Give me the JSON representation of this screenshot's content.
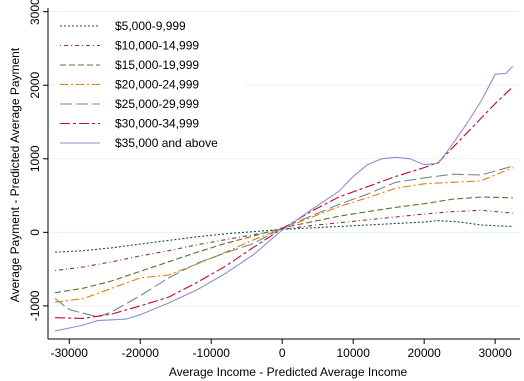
{
  "chart_data": {
    "type": "line",
    "xlabel": "Average Income - Predicted Average Income",
    "ylabel": "Average Payment - Predicted Average Payment",
    "xlim": [
      -33000,
      33500
    ],
    "ylim": [
      -1450,
      3050
    ],
    "xticks": [
      -30000,
      -20000,
      -10000,
      0,
      10000,
      20000,
      30000
    ],
    "yticks": [
      -1000,
      0,
      1000,
      2000,
      3000
    ],
    "grid": true,
    "legend_position": "top-left",
    "series": [
      {
        "name": "$5,000-9,999",
        "color": "#1a476f",
        "dash": "2,2",
        "points": [
          [
            -32000,
            -270
          ],
          [
            -28000,
            -250
          ],
          [
            -24000,
            -210
          ],
          [
            -20000,
            -160
          ],
          [
            -16000,
            -110
          ],
          [
            -12000,
            -60
          ],
          [
            -8000,
            -20
          ],
          [
            -4000,
            10
          ],
          [
            0,
            40
          ],
          [
            4000,
            60
          ],
          [
            8000,
            80
          ],
          [
            12000,
            100
          ],
          [
            16000,
            120
          ],
          [
            20000,
            140
          ],
          [
            22000,
            160
          ],
          [
            25000,
            140
          ],
          [
            28000,
            100
          ],
          [
            32500,
            80
          ]
        ]
      },
      {
        "name": "$10,000-14,999",
        "color": "#90353b",
        "dash": "1,3,4,3",
        "points": [
          [
            -32000,
            -520
          ],
          [
            -28000,
            -470
          ],
          [
            -24000,
            -400
          ],
          [
            -20000,
            -320
          ],
          [
            -16000,
            -250
          ],
          [
            -12000,
            -170
          ],
          [
            -8000,
            -100
          ],
          [
            -4000,
            -30
          ],
          [
            0,
            40
          ],
          [
            4000,
            90
          ],
          [
            8000,
            130
          ],
          [
            12000,
            170
          ],
          [
            16000,
            210
          ],
          [
            20000,
            250
          ],
          [
            24000,
            280
          ],
          [
            28000,
            300
          ],
          [
            32500,
            260
          ]
        ]
      },
      {
        "name": "$15,000-19,999",
        "color": "#55752f",
        "dash": "6,3",
        "points": [
          [
            -32000,
            -820
          ],
          [
            -28000,
            -760
          ],
          [
            -24000,
            -660
          ],
          [
            -20000,
            -530
          ],
          [
            -16000,
            -400
          ],
          [
            -12000,
            -270
          ],
          [
            -8000,
            -150
          ],
          [
            -4000,
            -50
          ],
          [
            0,
            60
          ],
          [
            4000,
            140
          ],
          [
            8000,
            220
          ],
          [
            12000,
            280
          ],
          [
            16000,
            340
          ],
          [
            20000,
            390
          ],
          [
            24000,
            450
          ],
          [
            28000,
            480
          ],
          [
            32500,
            470
          ]
        ]
      },
      {
        "name": "$20,000-24,999",
        "color": "#e37e00",
        "dash": "8,3,2,3",
        "points": [
          [
            -32000,
            -950
          ],
          [
            -28000,
            -900
          ],
          [
            -24000,
            -760
          ],
          [
            -20000,
            -620
          ],
          [
            -16000,
            -580
          ],
          [
            -12000,
            -430
          ],
          [
            -8000,
            -270
          ],
          [
            -4000,
            -100
          ],
          [
            0,
            50
          ],
          [
            4000,
            200
          ],
          [
            8000,
            350
          ],
          [
            12000,
            470
          ],
          [
            16000,
            600
          ],
          [
            20000,
            660
          ],
          [
            24000,
            680
          ],
          [
            28000,
            700
          ],
          [
            32500,
            880
          ]
        ]
      },
      {
        "name": "$25,000-29,999",
        "color": "#6e8e84",
        "dash": "12,4",
        "points": [
          [
            -32000,
            -900
          ],
          [
            -30000,
            -1050
          ],
          [
            -28000,
            -1100
          ],
          [
            -26000,
            -1150
          ],
          [
            -24000,
            -1080
          ],
          [
            -20000,
            -860
          ],
          [
            -16000,
            -620
          ],
          [
            -12000,
            -420
          ],
          [
            -8000,
            -280
          ],
          [
            -4000,
            -150
          ],
          [
            0,
            60
          ],
          [
            4000,
            220
          ],
          [
            8000,
            380
          ],
          [
            12000,
            520
          ],
          [
            16000,
            680
          ],
          [
            20000,
            740
          ],
          [
            24000,
            790
          ],
          [
            28000,
            780
          ],
          [
            32500,
            900
          ]
        ]
      },
      {
        "name": "$30,000-34,999",
        "color": "#c10534",
        "dash": "10,3,3,3",
        "points": [
          [
            -32000,
            -1160
          ],
          [
            -28000,
            -1170
          ],
          [
            -24000,
            -1110
          ],
          [
            -20000,
            -1000
          ],
          [
            -16000,
            -880
          ],
          [
            -12000,
            -680
          ],
          [
            -8000,
            -460
          ],
          [
            -4000,
            -200
          ],
          [
            0,
            50
          ],
          [
            4000,
            280
          ],
          [
            8000,
            480
          ],
          [
            12000,
            620
          ],
          [
            16000,
            760
          ],
          [
            20000,
            880
          ],
          [
            22000,
            950
          ],
          [
            24000,
            1150
          ],
          [
            26000,
            1350
          ],
          [
            28000,
            1550
          ],
          [
            30000,
            1750
          ],
          [
            32500,
            1980
          ]
        ]
      },
      {
        "name": "$35,000 and above",
        "color": "#938dd2",
        "dash": "",
        "points": [
          [
            -32000,
            -1340
          ],
          [
            -30000,
            -1300
          ],
          [
            -28000,
            -1260
          ],
          [
            -26000,
            -1200
          ],
          [
            -22000,
            -1180
          ],
          [
            -20000,
            -1120
          ],
          [
            -16000,
            -960
          ],
          [
            -12000,
            -780
          ],
          [
            -8000,
            -560
          ],
          [
            -4000,
            -300
          ],
          [
            0,
            30
          ],
          [
            4000,
            300
          ],
          [
            8000,
            560
          ],
          [
            10000,
            760
          ],
          [
            12000,
            920
          ],
          [
            14000,
            1000
          ],
          [
            16000,
            1020
          ],
          [
            18000,
            1000
          ],
          [
            20000,
            920
          ],
          [
            22000,
            940
          ],
          [
            24000,
            1200
          ],
          [
            26000,
            1480
          ],
          [
            28000,
            1780
          ],
          [
            30000,
            2150
          ],
          [
            31500,
            2160
          ],
          [
            32500,
            2260
          ]
        ]
      }
    ]
  }
}
